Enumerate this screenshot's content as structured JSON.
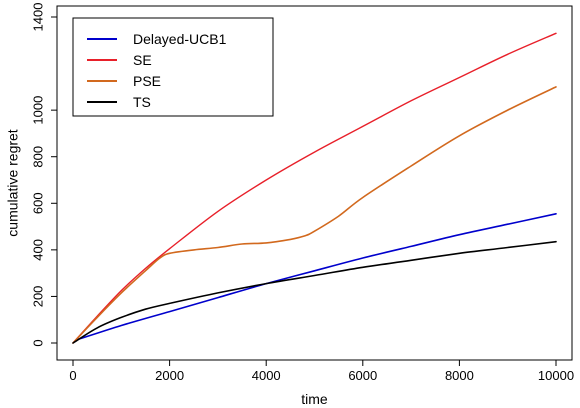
{
  "chart_data": {
    "type": "line",
    "title": "",
    "xlabel": "time",
    "ylabel": "cumulative regret",
    "xlim": [
      0,
      10000
    ],
    "ylim": [
      0,
      1400
    ],
    "x_ticks": [
      0,
      2000,
      4000,
      6000,
      8000,
      10000
    ],
    "y_ticks": [
      0,
      200,
      400,
      600,
      800,
      1000,
      1400
    ],
    "grid": false,
    "legend_position": "top-left",
    "series": [
      {
        "name": "Delayed-UCB1",
        "color": "#0000cc",
        "x": [
          100,
          1000,
          2000,
          3000,
          4000,
          5000,
          6000,
          7000,
          8000,
          9000,
          10000
        ],
        "y": [
          15,
          75,
          135,
          195,
          255,
          310,
          365,
          415,
          465,
          510,
          555
        ]
      },
      {
        "name": "SE",
        "color": "#e8202a",
        "x": [
          0,
          500,
          1000,
          1500,
          2000,
          3000,
          4000,
          5000,
          6000,
          7000,
          8000,
          9000,
          10000
        ],
        "y": [
          0,
          115,
          225,
          320,
          405,
          565,
          700,
          820,
          930,
          1040,
          1140,
          1240,
          1330
        ]
      },
      {
        "name": "PSE",
        "color": "#d2691e",
        "x": [
          0,
          500,
          1000,
          1500,
          1800,
          2000,
          2500,
          3000,
          3500,
          4000,
          4500,
          4800,
          5000,
          5500,
          6000,
          7000,
          8000,
          9000,
          10000
        ],
        "y": [
          0,
          110,
          215,
          310,
          365,
          385,
          400,
          410,
          425,
          430,
          445,
          460,
          480,
          545,
          625,
          760,
          890,
          1000,
          1100
        ]
      },
      {
        "name": "TS",
        "color": "#000000",
        "x": [
          0,
          500,
          1000,
          1500,
          2000,
          3000,
          4000,
          5000,
          6000,
          7000,
          8000,
          9000,
          10000
        ],
        "y": [
          0,
          65,
          110,
          145,
          170,
          215,
          255,
          290,
          325,
          355,
          385,
          410,
          435
        ]
      }
    ]
  }
}
